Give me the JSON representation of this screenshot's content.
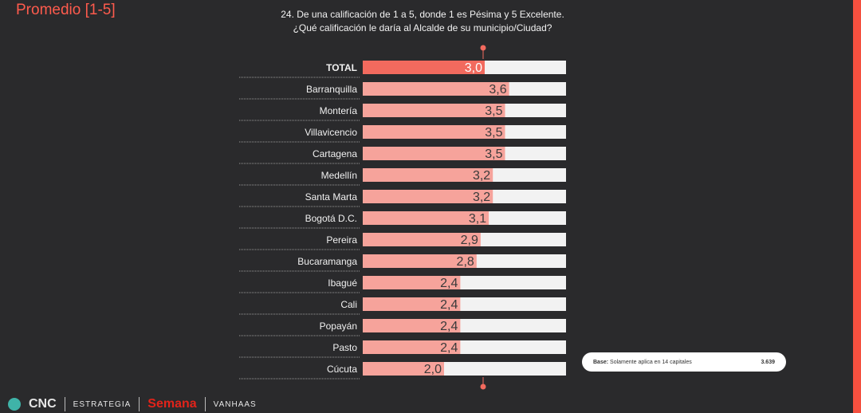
{
  "header": {
    "corner_title": "Promedio [1-5]",
    "question_line1": "24. De una calificación de 1 a 5, donde 1 es Pésima y 5 Excelente.",
    "question_line2": "¿Qué calificación le daría al Alcalde de su municipio/Ciudad?"
  },
  "chart_data": {
    "type": "bar",
    "orientation": "horizontal",
    "title": "",
    "xlim": [
      0,
      5
    ],
    "categories": [
      "TOTAL",
      "Barranquilla",
      "Montería",
      "Villavicencio",
      "Cartagena",
      "Medellín",
      "Santa Marta",
      "Bogotá D.C.",
      "Pereira",
      "Bucaramanga",
      "Ibagué",
      "Cali",
      "Popayán",
      "Pasto",
      "Cúcuta"
    ],
    "values": [
      3.0,
      3.6,
      3.5,
      3.5,
      3.5,
      3.2,
      3.2,
      3.1,
      2.9,
      2.8,
      2.4,
      2.4,
      2.4,
      2.4,
      2.0
    ],
    "value_labels": [
      "3,0",
      "3,6",
      "3,5",
      "3,5",
      "3,5",
      "3,2",
      "3,2",
      "3,1",
      "2,9",
      "2,8",
      "2,4",
      "2,4",
      "2,4",
      "2,4",
      "2,0"
    ],
    "colors": {
      "total_bar": "#f26a5e",
      "bar": "#f6a39b",
      "track": "#f2f2f2",
      "label_highlight": "#ffffff"
    }
  },
  "base_note": {
    "label": "Base:",
    "text": "Solamente aplica en 14 capitales",
    "value": "3.639"
  },
  "footer": {
    "cnc": "CNC",
    "estrategia": "ESTRATEGIA",
    "semana": "Semana",
    "vanhaas": "VANHAAS"
  }
}
